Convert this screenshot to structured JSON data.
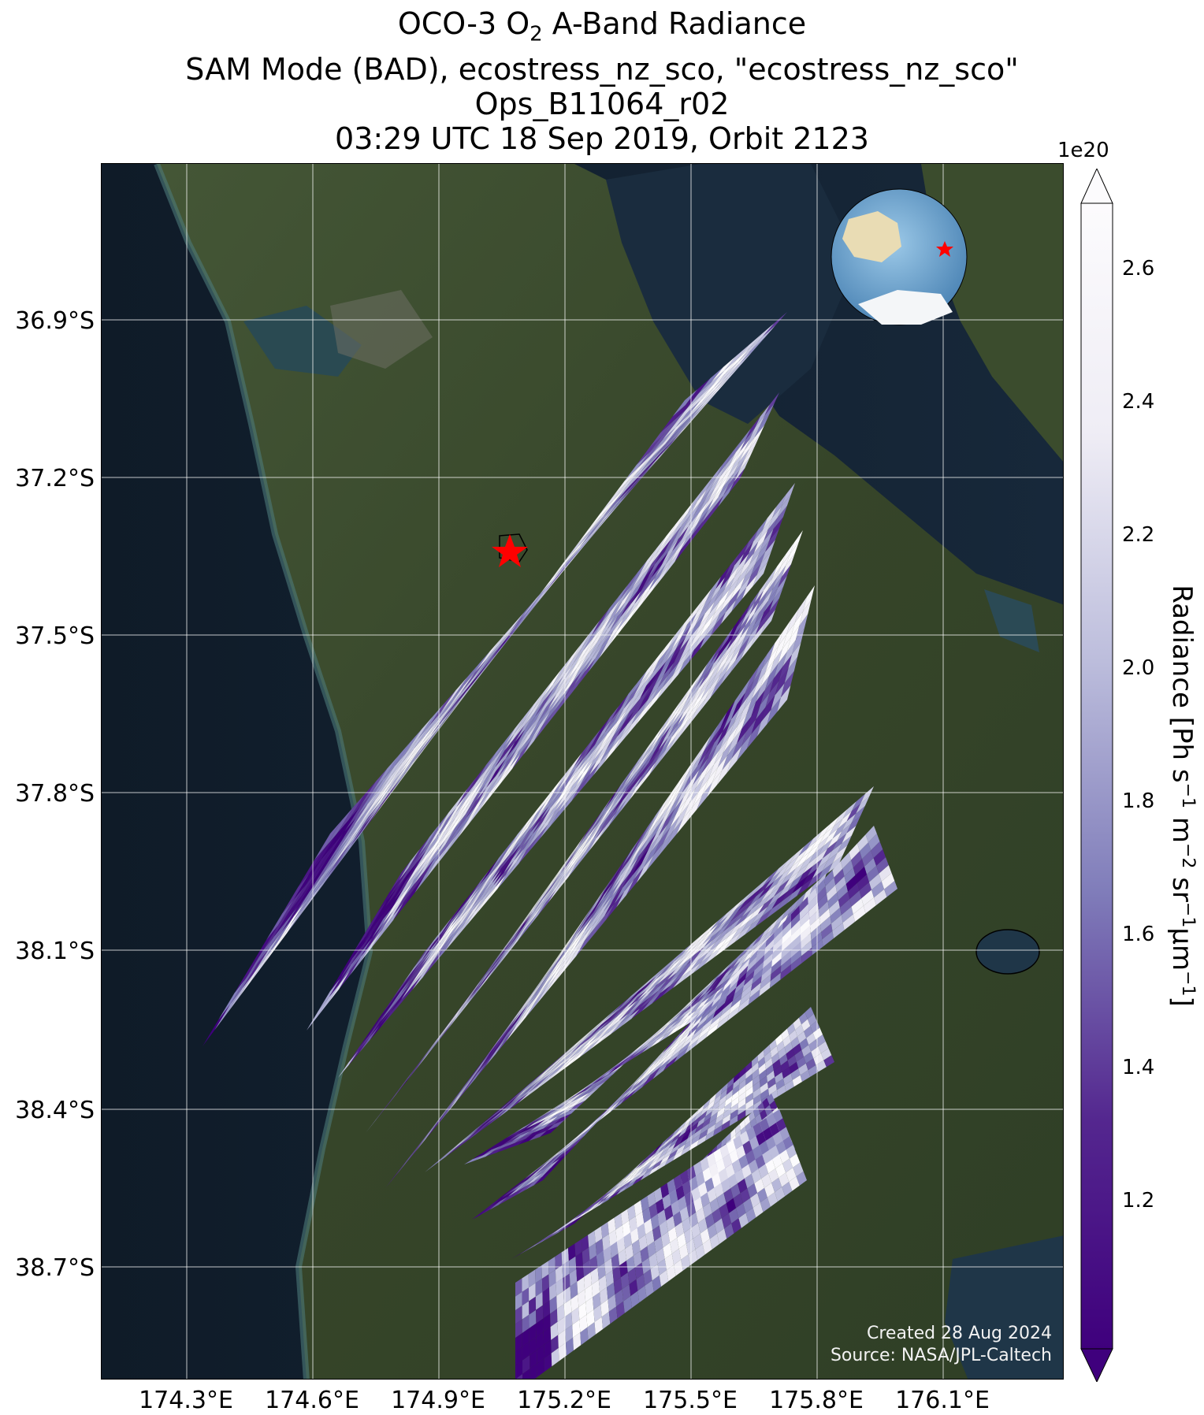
{
  "title": {
    "line1_prefix": "OCO-3 O",
    "line1_sub": "2",
    "line1_suffix": " A-Band Radiance",
    "line2": "SAM Mode (BAD), ecostress_nz_sco, \"ecostress_nz_sco\"",
    "line3": "Ops_B11064_r02",
    "line4": "03:29 UTC 18 Sep 2019, Orbit 2123"
  },
  "map": {
    "lat_ticks": [
      "36.9°S",
      "37.2°S",
      "37.5°S",
      "37.8°S",
      "38.1°S",
      "38.4°S",
      "38.7°S"
    ],
    "lon_ticks": [
      "174.3°E",
      "174.6°E",
      "174.9°E",
      "175.2°E",
      "175.5°E",
      "175.8°E",
      "176.1°E"
    ],
    "colors": {
      "ocean": "#111d2a",
      "land": "#3a4a2c",
      "grid": "#ffffff",
      "target_marker": "#ff0000"
    },
    "target_marker_icon": "star-icon",
    "inset_globe_icon": "globe-icon"
  },
  "credits": {
    "created": "Created 28 Aug 2024",
    "source": "Source: NASA/JPL-Caltech"
  },
  "colorbar": {
    "exponent": "1e20",
    "ticks": [
      "1.2",
      "1.4",
      "1.6",
      "1.8",
      "2.0",
      "2.2",
      "2.4",
      "2.6"
    ],
    "label_prefix": "Radiance [Ph s",
    "label_sup1": "−1",
    "label_mid1": " m",
    "label_sup2": "−2",
    "label_mid2": " sr",
    "label_sup3": "−1",
    "label_mid3": "μm",
    "label_sup4": "−1",
    "label_suffix": "]",
    "colormap": "Purples_r",
    "extend": "both"
  }
}
